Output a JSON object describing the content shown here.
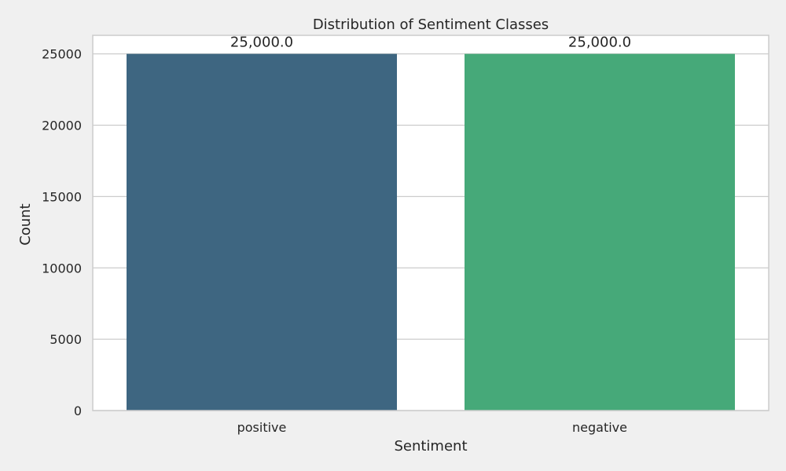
{
  "chart_data": {
    "type": "bar",
    "title": "Distribution of Sentiment Classes",
    "xlabel": "Sentiment",
    "ylabel": "Count",
    "categories": [
      "positive",
      "negative"
    ],
    "values": [
      25000,
      25000
    ],
    "value_labels": [
      "25,000.0",
      "25,000.0"
    ],
    "ylim": [
      0,
      26300
    ],
    "yticks": [
      0,
      5000,
      10000,
      15000,
      20000,
      25000
    ],
    "ytick_labels": [
      "0",
      "5000",
      "10000",
      "15000",
      "20000",
      "25000"
    ],
    "grid": "horizontal",
    "colors": [
      "#3e6681",
      "#46a979"
    ],
    "background": "#ffffff",
    "figure_background": "#f0f0f0",
    "grid_color": "#cccccc"
  }
}
